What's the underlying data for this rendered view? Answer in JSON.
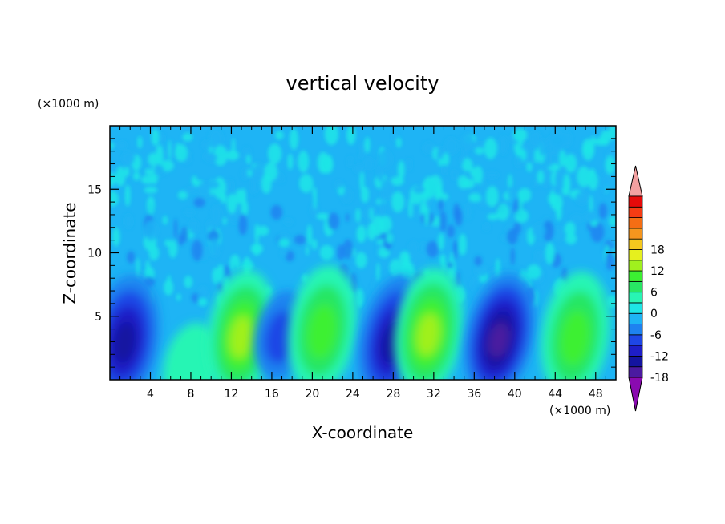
{
  "chart_data": {
    "type": "heatmap",
    "title": "vertical velocity",
    "xlabel": "X-coordinate",
    "ylabel": "Z-coordinate",
    "x_unit": "(×1000 m)",
    "y_unit": "(×1000 m)",
    "xlim": [
      0,
      50
    ],
    "ylim": [
      0,
      20
    ],
    "x_ticks": [
      4,
      8,
      12,
      16,
      20,
      24,
      28,
      32,
      36,
      40,
      44,
      48
    ],
    "y_ticks": [
      5,
      10,
      15
    ],
    "colorbar": {
      "min": -21,
      "max": 21,
      "step": 3,
      "labels": [
        18,
        12,
        6,
        0,
        -6,
        -12,
        -18
      ],
      "colors": [
        "#8a0ab0",
        "#4b1aa0",
        "#1414a0",
        "#1e1ec8",
        "#1e46e6",
        "#1e82f0",
        "#1eb4f5",
        "#1ee6e6",
        "#28f5b4",
        "#28e664",
        "#3cf032",
        "#a0f01e",
        "#e6f01e",
        "#f5c81e",
        "#f5961e",
        "#f56e14",
        "#f53c14",
        "#e60a0a",
        "#f2a0a0"
      ]
    },
    "features": [
      {
        "x": 1.5,
        "z": 3.2,
        "value": -12
      },
      {
        "x": 8,
        "z": 1.0,
        "value": 4
      },
      {
        "x": 13,
        "z": 3.6,
        "value": 12
      },
      {
        "x": 17,
        "z": 3.5,
        "value": -8
      },
      {
        "x": 21,
        "z": 4.0,
        "value": 10
      },
      {
        "x": 28,
        "z": 3.2,
        "value": -13
      },
      {
        "x": 31.5,
        "z": 3.8,
        "value": 13
      },
      {
        "x": 38.5,
        "z": 3.4,
        "value": -15
      },
      {
        "x": 46,
        "z": 3.5,
        "value": 11
      }
    ]
  }
}
